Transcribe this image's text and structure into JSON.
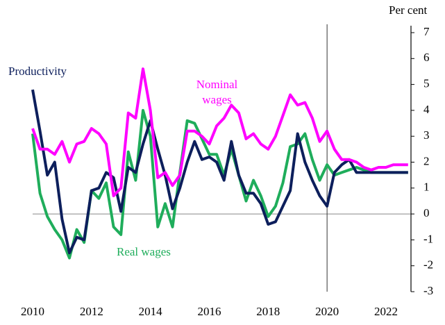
{
  "chart_data": {
    "type": "line",
    "y_label": "Per cent",
    "x": [
      2010,
      2010.25,
      2010.5,
      2010.75,
      2011,
      2011.25,
      2011.5,
      2011.75,
      2012,
      2012.25,
      2012.5,
      2012.75,
      2013,
      2013.25,
      2013.5,
      2013.75,
      2014,
      2014.25,
      2014.5,
      2014.75,
      2015,
      2015.25,
      2015.5,
      2015.75,
      2016,
      2016.25,
      2016.5,
      2016.75,
      2017,
      2017.25,
      2017.5,
      2017.75,
      2018,
      2018.25,
      2018.5,
      2018.75,
      2019,
      2019.25,
      2019.5,
      2019.75,
      2020,
      2020.25,
      2020.5,
      2020.75,
      2021,
      2021.25,
      2021.5,
      2021.75,
      2022,
      2022.25,
      2022.5,
      2022.75
    ],
    "series": [
      {
        "name": "Productivity",
        "color": "#0d1f5c",
        "values": [
          4.8,
          3.2,
          1.5,
          2.0,
          -0.2,
          -1.5,
          -0.9,
          -1.0,
          0.9,
          1.0,
          1.6,
          1.4,
          0.1,
          1.8,
          1.6,
          2.7,
          3.6,
          2.5,
          1.5,
          0.2,
          1.0,
          2.0,
          2.8,
          2.1,
          2.2,
          2.0,
          1.3,
          2.8,
          1.5,
          0.8,
          0.8,
          0.4,
          -0.4,
          -0.3,
          0.3,
          0.9,
          3.1,
          2.0,
          1.3,
          0.7,
          0.3,
          1.6,
          1.9,
          2.1,
          1.6,
          1.6,
          1.6,
          1.6,
          1.6,
          1.6,
          1.6,
          1.6
        ]
      },
      {
        "name": "Nominal wages",
        "color": "#ff00ff",
        "values": [
          3.3,
          2.5,
          2.5,
          2.3,
          2.8,
          2.0,
          2.7,
          2.8,
          3.3,
          3.1,
          2.7,
          0.7,
          1.0,
          3.9,
          3.7,
          5.6,
          4.0,
          1.4,
          1.6,
          1.1,
          1.5,
          3.2,
          3.2,
          3.0,
          2.7,
          3.4,
          3.7,
          4.2,
          3.9,
          2.9,
          3.1,
          2.7,
          2.5,
          3.0,
          3.8,
          4.6,
          4.2,
          4.3,
          3.7,
          2.8,
          3.2,
          2.5,
          2.1,
          2.1,
          2.0,
          1.8,
          1.7,
          1.8,
          1.8,
          1.9,
          1.9,
          1.9
        ]
      },
      {
        "name": "Real wages",
        "color": "#1fad5b",
        "values": [
          3.1,
          0.8,
          -0.1,
          -0.6,
          -1.0,
          -1.7,
          -0.6,
          -1.1,
          0.9,
          0.6,
          1.2,
          -0.5,
          -0.8,
          2.4,
          1.3,
          4.0,
          3.0,
          -0.5,
          0.4,
          -0.5,
          1.6,
          3.6,
          3.5,
          2.9,
          2.3,
          2.3,
          1.5,
          2.5,
          1.5,
          0.5,
          1.3,
          0.7,
          -0.1,
          0.3,
          1.2,
          2.6,
          2.7,
          3.1,
          2.1,
          1.3,
          1.9,
          1.5,
          1.6,
          1.7,
          1.8,
          1.7,
          1.6,
          1.6,
          1.6,
          1.6,
          1.6,
          1.6
        ]
      }
    ],
    "xlim": [
      2010,
      2022.85
    ],
    "xticks": [
      2010,
      2012,
      2014,
      2016,
      2018,
      2020,
      2022
    ],
    "ylim": [
      -3,
      7
    ],
    "yticks": [
      -3,
      -2,
      -1,
      0,
      1,
      2,
      3,
      4,
      5,
      6,
      7
    ],
    "hline": 0,
    "vline": 2020
  }
}
